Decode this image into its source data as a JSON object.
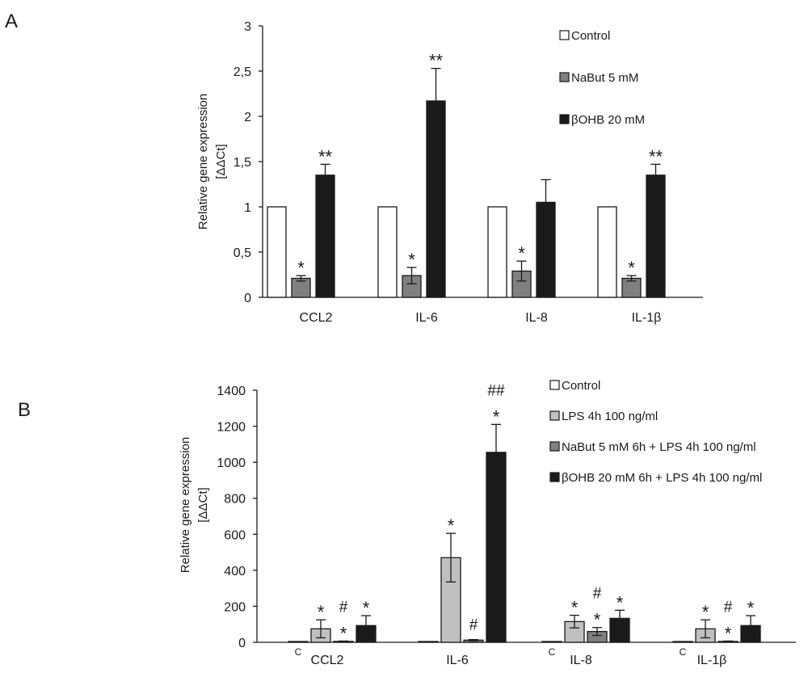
{
  "chart_data": [
    {
      "panel_label": "A",
      "type": "bar",
      "title": "",
      "xlabel": "",
      "ylabel": [
        "Relative gene expression",
        "[ΔΔCt]"
      ],
      "ylim": [
        0,
        3
      ],
      "yticks": [
        0,
        0.5,
        1,
        1.5,
        2,
        2.5,
        3
      ],
      "ytick_labels": [
        "0",
        "0,5",
        "1",
        "1,5",
        "2",
        "2,5",
        "3"
      ],
      "categories": [
        "CCL2",
        "IL-6",
        "IL-8",
        "IL-1β"
      ],
      "series": [
        {
          "name": "Control",
          "color": "#ffffff",
          "values": [
            1,
            1,
            1,
            1
          ],
          "errors": [
            0,
            0,
            0,
            0
          ],
          "marks": [
            "",
            "",
            "",
            ""
          ]
        },
        {
          "name": "NaBut 5 mM",
          "color": "#808080",
          "values": [
            0.21,
            0.24,
            0.29,
            0.21
          ],
          "errors": [
            0.03,
            0.09,
            0.11,
            0.03
          ],
          "marks": [
            "*",
            "*",
            "*",
            "*"
          ]
        },
        {
          "name": "βOHB 20 mM",
          "color": "#1a1a1a",
          "values": [
            1.35,
            2.17,
            1.05,
            1.35
          ],
          "errors": [
            0.12,
            0.36,
            0.25,
            0.12
          ],
          "marks": [
            "**",
            "**",
            "",
            "**"
          ]
        }
      ],
      "category_prefix_labels": [
        "",
        "",
        "",
        ""
      ]
    },
    {
      "panel_label": "B",
      "type": "bar",
      "title": "",
      "xlabel": "",
      "ylabel": [
        "Relative gene expression",
        "[ΔΔCt]"
      ],
      "ylim": [
        0,
        1400
      ],
      "yticks": [
        0,
        200,
        400,
        600,
        800,
        1000,
        1200,
        1400
      ],
      "ytick_labels": [
        "0",
        "200",
        "400",
        "600",
        "800",
        "1000",
        "1200",
        "1400"
      ],
      "categories": [
        "CCL2",
        "IL-6",
        "IL-8",
        "IL-1β"
      ],
      "series": [
        {
          "name": "Control",
          "color": "#ffffff",
          "values": [
            1,
            1,
            1,
            1
          ],
          "errors": [
            0,
            0,
            0,
            0
          ],
          "marks": [
            "",
            "",
            "",
            ""
          ]
        },
        {
          "name": "LPS 4h 100 ng/ml",
          "color": "#c0c0c0",
          "values": [
            75,
            470,
            115,
            75
          ],
          "errors": [
            50,
            135,
            35,
            50
          ],
          "marks": [
            "*",
            "*",
            "*",
            "*"
          ]
        },
        {
          "name": "NaBut 5 mM 6h + LPS 4h 100 ng/ml",
          "color": "#808080",
          "values": [
            5,
            12,
            60,
            5
          ],
          "errors": [
            2,
            3,
            22,
            2
          ],
          "marks": [
            "#\n*",
            "#",
            "#\n*",
            "#\n*"
          ]
        },
        {
          "name": "βOHB 20 mM 6h + LPS 4h 100 ng/ml",
          "color": "#1a1a1a",
          "values": [
            93,
            1055,
            133,
            93
          ],
          "errors": [
            55,
            155,
            45,
            55
          ],
          "marks": [
            "*",
            "##\n*",
            "*",
            "*"
          ]
        }
      ],
      "category_prefix_labels": [
        "C",
        "",
        "C",
        "C"
      ]
    }
  ]
}
